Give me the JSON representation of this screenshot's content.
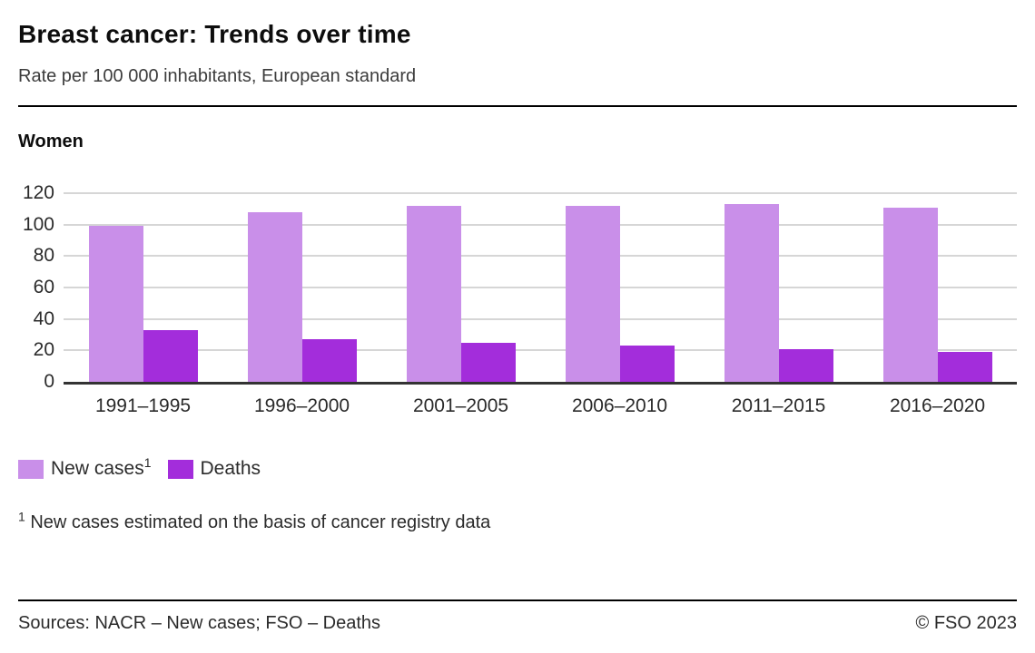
{
  "header": {
    "title": "Breast cancer: Trends over time",
    "subtitle": "Rate per 100 000 inhabitants, European standard"
  },
  "section_label": "Women",
  "chart_data": {
    "type": "bar",
    "categories": [
      "1991–1995",
      "1996–2000",
      "2001–2005",
      "2006–2010",
      "2011–2015",
      "2016–2020"
    ],
    "series": [
      {
        "name": "New cases",
        "footnote_marker": "1",
        "color": "#c98fe9",
        "values": [
          99,
          108,
          112,
          112,
          113,
          111
        ]
      },
      {
        "name": "Deaths",
        "footnote_marker": "",
        "color": "#a32ddb",
        "values": [
          33,
          27,
          25,
          23,
          21,
          19
        ]
      }
    ],
    "title": "Breast cancer: Trends over time",
    "subtitle": "Rate per 100 000 inhabitants, European standard",
    "group_label": "Women",
    "xlabel": "",
    "ylabel": "Rate per 100 000 inhabitants",
    "ylim": [
      0,
      120
    ],
    "yticks": [
      0,
      20,
      40,
      60,
      80,
      100,
      120
    ],
    "grid": true,
    "legend_position": "bottom-left"
  },
  "footnote": {
    "marker": "1",
    "text": " New cases estimated on the basis of cancer registry data"
  },
  "footer": {
    "sources": "Sources: NACR – New cases; FSO – Deaths",
    "copyright": "© FSO 2023"
  },
  "colors": {
    "gridline": "#d6d6d6",
    "axis": "#333333",
    "divider": "#000000"
  }
}
